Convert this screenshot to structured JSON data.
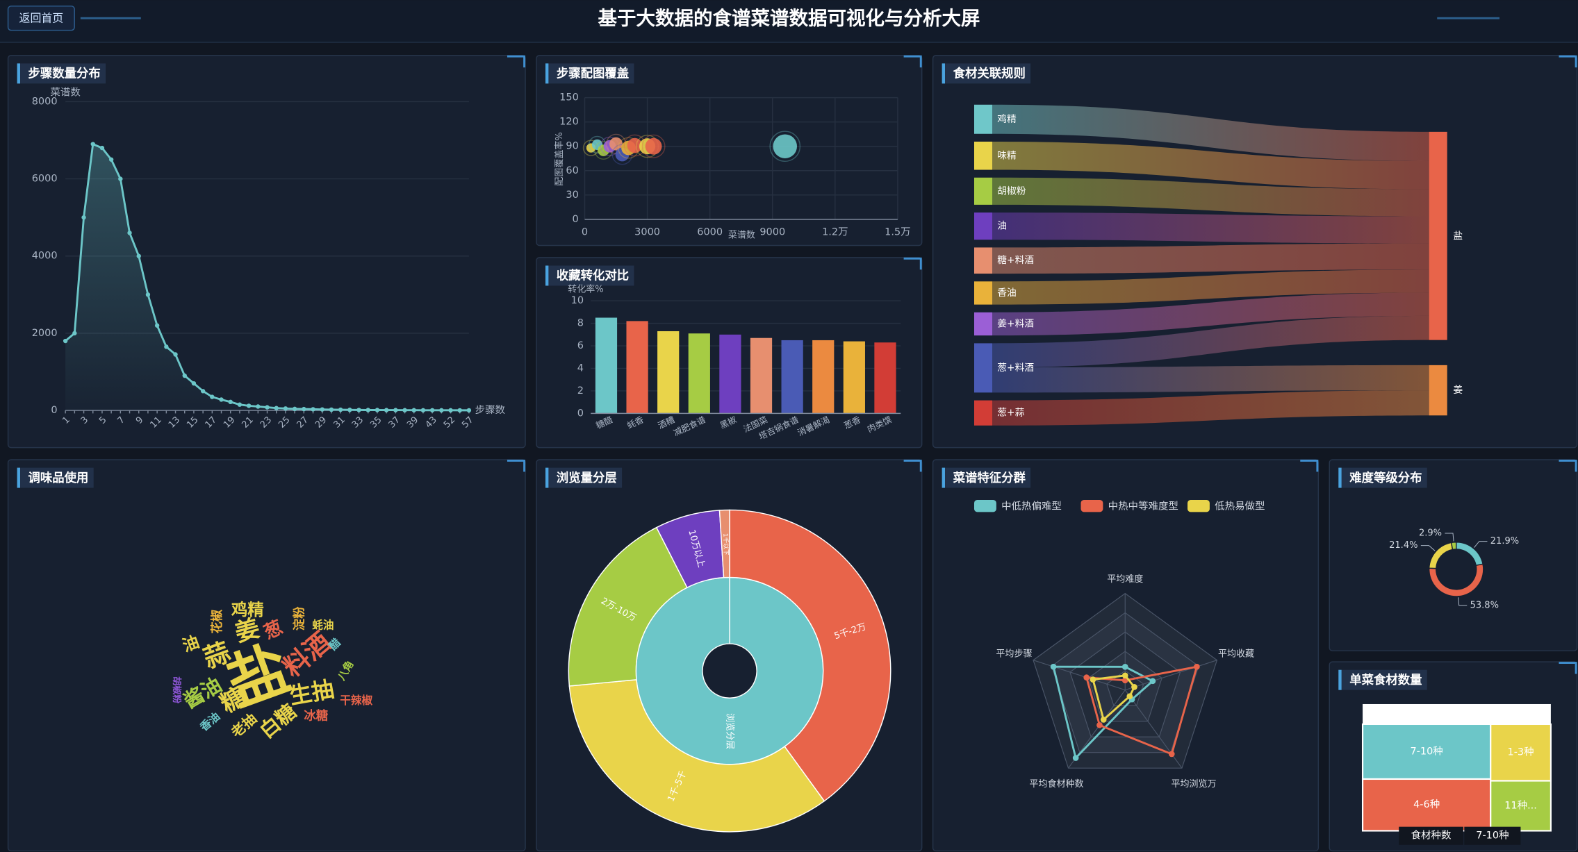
{
  "header": {
    "title": "基于大数据的食谱菜谱数据可视化与分析大屏",
    "back_button": "返回首页"
  },
  "chart_data": [
    {
      "type": "line",
      "title": "步骤数量分布",
      "y_label": "菜谱数",
      "x_label": "步骤数",
      "categories": [
        "1",
        null,
        "3",
        null,
        "5",
        null,
        "7",
        null,
        "9",
        null,
        "11",
        null,
        "13",
        null,
        "15",
        null,
        "17",
        null,
        "19",
        null,
        "21",
        null,
        "23",
        null,
        "25",
        null,
        "27",
        null,
        "29",
        null,
        "31",
        null,
        "33",
        null,
        "35",
        null,
        "37",
        null,
        "39",
        null,
        "43",
        null,
        "52",
        null,
        "57"
      ],
      "values": [
        1800,
        2000,
        5000,
        6900,
        6800,
        6500,
        6000,
        4600,
        4000,
        3000,
        2200,
        1650,
        1450,
        900,
        700,
        500,
        350,
        280,
        220,
        150,
        120,
        100,
        80,
        60,
        50,
        40,
        35,
        30,
        25,
        20,
        18,
        15,
        12,
        10,
        10,
        8,
        8,
        6,
        6,
        5,
        5,
        4,
        4,
        3,
        3
      ],
      "color": "#6cc6c8",
      "ylim": [
        0,
        8000
      ],
      "yticks": [
        0,
        2000,
        4000,
        6000,
        8000
      ],
      "grid": true
    },
    {
      "type": "scatter",
      "title": "步骤配图覆盖",
      "x_label": "菜谱数",
      "y_label": "配图覆盖率%",
      "x": [
        300,
        600,
        900,
        1200,
        1500,
        1800,
        2100,
        2400,
        3000,
        3300,
        9600
      ],
      "values": [
        88,
        92,
        85,
        90,
        93,
        80,
        88,
        91,
        90,
        90,
        90
      ],
      "colors": [
        "#e9d44a",
        "#6cc6c8",
        "#a6cc44",
        "#9b5fd6",
        "#e78f6f",
        "#4a5bb5",
        "#e9b23a",
        "#e8644a",
        "#e9d44a",
        "#e8644a",
        "#6cc6c8"
      ],
      "xlim": [
        0,
        15000
      ],
      "xticks": [
        0,
        3000,
        6000,
        9000,
        {
          "value": 12000,
          "label": "1.2万"
        },
        {
          "value": 15000,
          "label": "1.5万"
        }
      ],
      "ylim": [
        0,
        150
      ],
      "yticks": [
        0,
        30,
        60,
        90,
        120,
        150
      ],
      "grid": true
    },
    {
      "type": "bar",
      "title": "收藏转化对比",
      "y_label": "转化率%",
      "categories": [
        "糖醋",
        "蚝香",
        "酒糟",
        "减肥食谱",
        "黑椒",
        "法国菜",
        "塔吉锅食谱",
        "消暑解渴",
        "葱香",
        "肉类馔"
      ],
      "values": [
        8.5,
        8.2,
        7.3,
        7.1,
        7.0,
        6.7,
        6.5,
        6.5,
        6.4,
        6.3
      ],
      "colors": [
        "#6cc6c8",
        "#e8644a",
        "#e9d44a",
        "#a6cc44",
        "#6e3fbf",
        "#e78f6f",
        "#4a5bb5",
        "#eb8a40",
        "#e9b23a",
        "#d23d36"
      ],
      "ylim": [
        0,
        10
      ],
      "yticks": [
        0,
        2,
        4,
        6,
        8,
        10
      ],
      "grid": true
    },
    {
      "type": "sankey",
      "title": "食材关联规则",
      "nodes": [
        {
          "name": "鸡精",
          "color": "#6fc7c9"
        },
        {
          "name": "味精",
          "color": "#e9d44a"
        },
        {
          "name": "胡椒粉",
          "color": "#a6cc44"
        },
        {
          "name": "油",
          "color": "#6e3fbf"
        },
        {
          "name": "糖+料酒",
          "color": "#e78f6f"
        },
        {
          "name": "香油",
          "color": "#e9b23a"
        },
        {
          "name": "姜+料酒",
          "color": "#9b5fd6"
        },
        {
          "name": "葱+料酒",
          "color": "#4a5bb5"
        },
        {
          "name": "葱+蒜",
          "color": "#d23d36"
        },
        {
          "name": "盐",
          "color": "#e8644a"
        },
        {
          "name": "姜",
          "color": "#eb8a40"
        }
      ],
      "links": [
        {
          "source": "鸡精",
          "target": "盐",
          "value": 29
        },
        {
          "source": "味精",
          "target": "盐",
          "value": 28
        },
        {
          "source": "胡椒粉",
          "target": "盐",
          "value": 27
        },
        {
          "source": "油",
          "target": "盐",
          "value": 27
        },
        {
          "source": "糖+料酒",
          "target": "盐",
          "value": 26
        },
        {
          "source": "香油",
          "target": "盐",
          "value": 23
        },
        {
          "source": "姜+料酒",
          "target": "盐",
          "value": 23
        },
        {
          "source": "葱+料酒",
          "target": "盐",
          "value": 24
        },
        {
          "source": "葱+料酒",
          "target": "姜",
          "value": 25
        },
        {
          "source": "葱+蒜",
          "target": "姜",
          "value": 25
        }
      ]
    },
    {
      "type": "wordcloud",
      "title": "调味品使用",
      "categories": [
        "盐",
        "蒜",
        "姜",
        "生抽",
        "料酒",
        "糖",
        "酱油",
        "鸡精",
        "白糖",
        "葱",
        "老抽",
        "油",
        "花椒",
        "淀粉",
        "蚝油",
        "醋",
        "八角",
        "香油",
        "冰糖",
        "干辣椒",
        "胡椒粉"
      ],
      "values": [
        100,
        43,
        40,
        37,
        43,
        40,
        33,
        27,
        33,
        30,
        23,
        27,
        20,
        20,
        18,
        18,
        17,
        18,
        20,
        18,
        15
      ],
      "colors": [
        "#e9d44a",
        "#e9d44a",
        "#e9d44a",
        "#e9d44a",
        "#e8644a",
        "#e9d44a",
        "#a6cc44",
        "#e9d44a",
        "#e9d44a",
        "#e8644a",
        "#e9d44a",
        "#e9d44a",
        "#e9b23a",
        "#e9b23a",
        "#e9d44a",
        "#6cc6c8",
        "#a6cc44",
        "#6cc6c8",
        "#e8644a",
        "#e8644a",
        "#8e56d6"
      ]
    },
    {
      "type": "sunburst",
      "title": "浏览量分层",
      "root": "浏览分层",
      "root_color": "#6cc6c8",
      "categories": [
        "5千-2万",
        "1千-5千",
        "2万-10万",
        "10万以上",
        "1千以下"
      ],
      "values": [
        40,
        33.5,
        19,
        6.5,
        1
      ],
      "colors": [
        "#e8644a",
        "#e9d44a",
        "#a6cc44",
        "#6e3fbf",
        "#e78f6f"
      ]
    },
    {
      "type": "radar",
      "title": "菜谱特征分群",
      "indicators": [
        "平均难度",
        "平均收藏",
        "平均浏览万",
        "平均食材种数",
        "平均步骤"
      ],
      "rlim": [
        0,
        1
      ],
      "rticks": [
        0.2,
        0.4,
        0.6,
        0.8,
        1
      ],
      "series": [
        {
          "name": "中低热偏难型",
          "color": "#6cc6c8",
          "values": [
            0.24,
            0.3,
            0.12,
            0.87,
            0.78
          ]
        },
        {
          "name": "中热中等难度型",
          "color": "#e8644a",
          "values": [
            0.1,
            0.78,
            0.82,
            0.45,
            0.42
          ]
        },
        {
          "name": "低热易做型",
          "color": "#e9d44a",
          "values": [
            0.15,
            0.1,
            0.08,
            0.38,
            0.35
          ]
        }
      ]
    },
    {
      "type": "pie",
      "title": "难度等级分布",
      "values": [
        21.9,
        53.8,
        21.4,
        2.9
      ],
      "value_labels": [
        "21.9%",
        "53.8%",
        "21.4%",
        "2.9%"
      ],
      "colors": [
        "#6cc6c8",
        "#e8644a",
        "#e9d44a",
        "#a6cc44"
      ]
    },
    {
      "type": "treemap",
      "title": "单菜食材数量",
      "root": "食材种数",
      "categories": [
        "7-10种",
        "4-6种",
        "1-3种",
        "11种..."
      ],
      "values": [
        35,
        33,
        17,
        15
      ],
      "colors": [
        "#6cc6c8",
        "#e8644a",
        "#e9d44a",
        "#a6cc44"
      ]
    }
  ]
}
